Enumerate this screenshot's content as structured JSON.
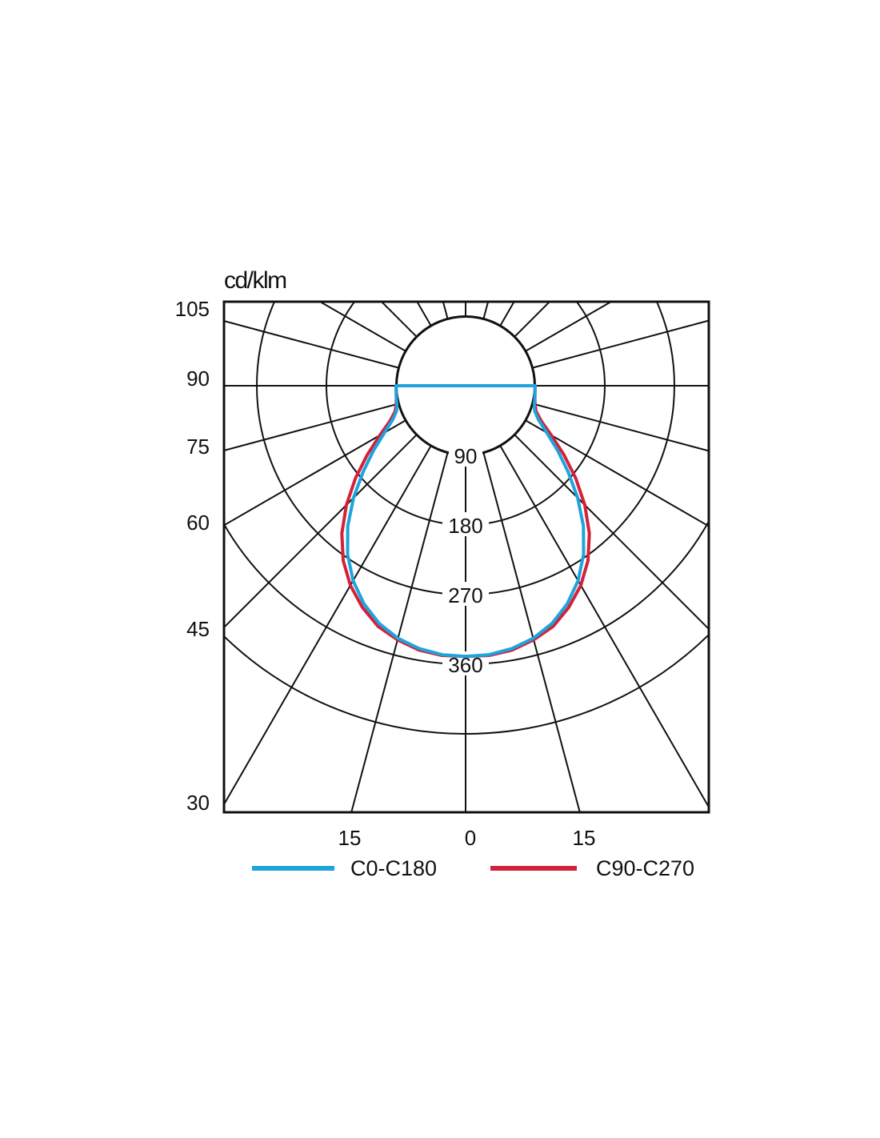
{
  "chart_data": {
    "type": "polar",
    "unit": "cd/klm",
    "radial_ticks": [
      "90",
      "180",
      "270",
      "360"
    ],
    "left_angle_ticks": [
      "105",
      "90",
      "75",
      "60",
      "45",
      "30"
    ],
    "bottom_angle_ticks": [
      "15",
      "0",
      "15"
    ],
    "radial_max": 450,
    "series": [
      {
        "name": "C0-C180",
        "color": "#1fa3dc",
        "angles_deg": [
          0,
          5,
          10,
          15,
          20,
          25,
          30,
          35,
          40,
          45,
          50,
          55,
          60,
          65,
          70,
          75,
          80,
          85,
          90
        ],
        "values": [
          350,
          349,
          345,
          338,
          327,
          311,
          291,
          266,
          237,
          205,
          173,
          145,
          121,
          104,
          95,
          92,
          91,
          90,
          90
        ]
      },
      {
        "name": "C90-C270",
        "color": "#d3213a",
        "angles_deg": [
          0,
          5,
          10,
          15,
          20,
          25,
          30,
          35,
          40,
          45,
          50,
          55,
          60,
          65,
          70,
          75,
          80,
          85,
          90
        ],
        "values": [
          350,
          350,
          347,
          340,
          331,
          316,
          298,
          276,
          249,
          218,
          186,
          155,
          128,
          108,
          97,
          93,
          91,
          90,
          90
        ]
      }
    ]
  }
}
